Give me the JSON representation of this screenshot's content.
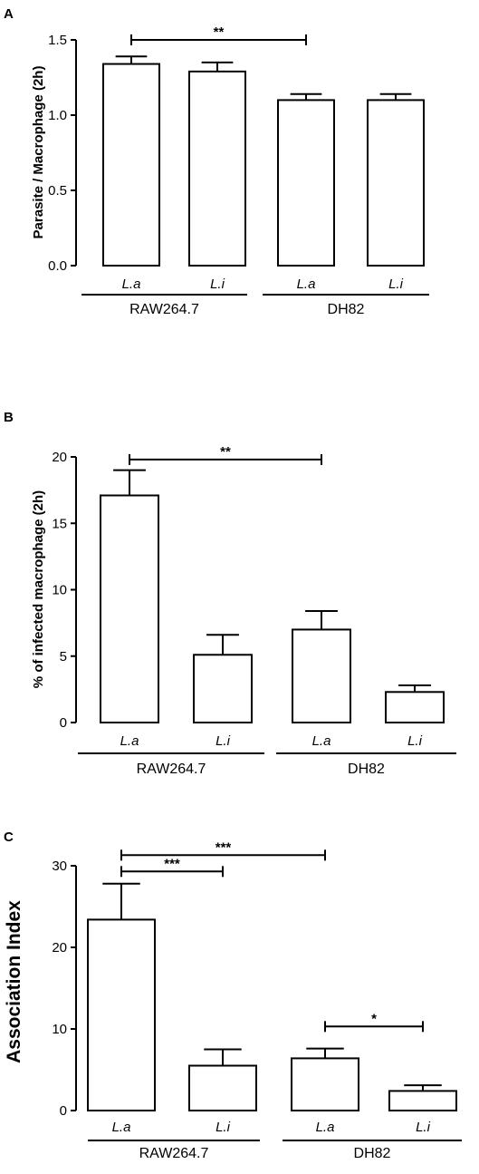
{
  "chart_data": [
    {
      "panel": "A",
      "type": "bar",
      "ylabel": "Parasite / Macrophage (2h)",
      "ylim": [
        0,
        1.5
      ],
      "yticks": [
        0.0,
        0.5,
        1.0,
        1.5
      ],
      "ytick_labels": [
        "0.0",
        "0.5",
        "1.0",
        "1.5"
      ],
      "categories": [
        "L.a",
        "L.i",
        "L.a",
        "L.i"
      ],
      "values": [
        1.34,
        1.29,
        1.1,
        1.1
      ],
      "errors": [
        0.05,
        0.06,
        0.04,
        0.04
      ],
      "groups": [
        {
          "label": "RAW264.7",
          "members": [
            0,
            1
          ]
        },
        {
          "label": "DH82",
          "members": [
            2,
            3
          ]
        }
      ],
      "significance": [
        {
          "from": 0,
          "to": 2,
          "label": "**",
          "y": 1.5
        }
      ]
    },
    {
      "panel": "B",
      "type": "bar",
      "ylabel": "% of infected macrophage (2h)",
      "ylim": [
        0,
        20
      ],
      "yticks": [
        0,
        5,
        10,
        15,
        20
      ],
      "ytick_labels": [
        "0",
        "5",
        "10",
        "15",
        "20"
      ],
      "categories": [
        "L.a",
        "L.i",
        "L.a",
        "L.i"
      ],
      "values": [
        17.1,
        5.1,
        7.0,
        2.3
      ],
      "errors": [
        1.9,
        1.5,
        1.4,
        0.5
      ],
      "groups": [
        {
          "label": "RAW264.7",
          "members": [
            0,
            1
          ]
        },
        {
          "label": "DH82",
          "members": [
            2,
            3
          ]
        }
      ],
      "significance": [
        {
          "from": 0,
          "to": 2,
          "label": "**",
          "y": 19.8
        }
      ]
    },
    {
      "panel": "C",
      "type": "bar",
      "ylabel": "Association Index",
      "ylim": [
        0,
        30
      ],
      "yticks": [
        0,
        10,
        20,
        30
      ],
      "ytick_labels": [
        "0",
        "10",
        "20",
        "30"
      ],
      "categories": [
        "L.a",
        "L.i",
        "L.a",
        "L.i"
      ],
      "values": [
        23.4,
        5.5,
        6.4,
        2.4
      ],
      "errors": [
        4.4,
        2.0,
        1.2,
        0.7
      ],
      "groups": [
        {
          "label": "RAW264.7",
          "members": [
            0,
            1
          ]
        },
        {
          "label": "DH82",
          "members": [
            2,
            3
          ]
        }
      ],
      "significance": [
        {
          "from": 0,
          "to": 2,
          "label": "***",
          "y": 31.3
        },
        {
          "from": 0,
          "to": 1,
          "label": "***",
          "y": 29.3
        },
        {
          "from": 2,
          "to": 3,
          "label": "*",
          "y": 10.3
        }
      ]
    }
  ]
}
